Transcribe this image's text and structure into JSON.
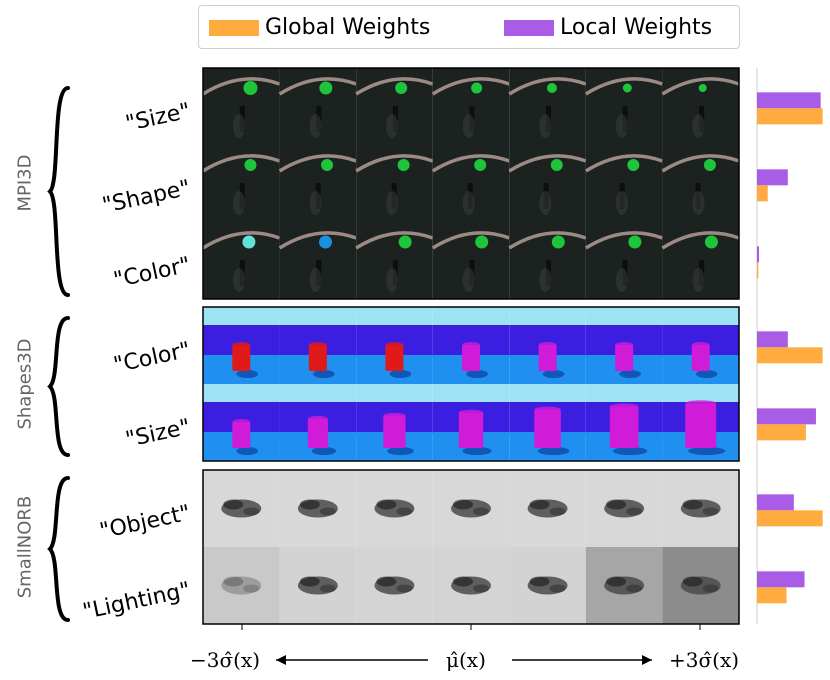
{
  "legend": {
    "global": {
      "label": "Global Weights",
      "color": "#ffab40"
    },
    "local": {
      "label": "Local Weights",
      "color": "#a95ce6"
    }
  },
  "groups": [
    {
      "name": "MPI3D",
      "rows": [
        {
          "label": "\"Size\"",
          "local": 0.95,
          "global": 0.98
        },
        {
          "label": "\"Shape\"",
          "local": 0.46,
          "global": 0.16
        },
        {
          "label": "\"Color\"",
          "local": 0.03,
          "global": 0.02
        }
      ]
    },
    {
      "name": "Shapes3D",
      "rows": [
        {
          "label": "\"Color\"",
          "local": 0.46,
          "global": 0.98
        },
        {
          "label": "\"Size\"",
          "local": 0.88,
          "global": 0.73
        }
      ]
    },
    {
      "name": "SmallNORB",
      "rows": [
        {
          "label": "\"Object\"",
          "local": 0.55,
          "global": 0.98
        },
        {
          "label": "\"Lighting\"",
          "local": 0.71,
          "global": 0.44
        }
      ]
    }
  ],
  "axis": {
    "left": "−3σ̂(x)",
    "center": "μ̂(x)",
    "right": "+3σ̂(x)"
  },
  "colors": {
    "mpi_bg": "#1c221f",
    "mpi_arc": "#9c8a84",
    "mpi_green": "#1ec43a",
    "mpi_cyan": "#5fe3d6",
    "mpi_blue": "#1b8fe0",
    "s3d_sky": "#9ee3f3",
    "s3d_wall": "#3b1ee0",
    "s3d_floor": "#1f8ff0",
    "s3d_red": "#e01a1a",
    "s3d_magenta": "#d01cd8",
    "norb_bg": "#d8d8d8",
    "norb_obj": "#4a4a4a"
  }
}
